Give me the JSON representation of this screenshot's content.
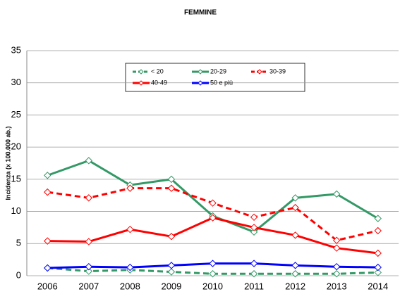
{
  "chart_data": {
    "type": "line",
    "title": "FEMMINE",
    "y_label": "Incidenza (x 100.000 ab.)",
    "categories": [
      "2006",
      "2007",
      "2008",
      "2009",
      "2010",
      "2011",
      "2012",
      "2013",
      "2014"
    ],
    "series": [
      {
        "name": "< 20",
        "color": "#339966",
        "dashed": true,
        "values": [
          1.2,
          0.7,
          0.9,
          0.6,
          0.3,
          0.3,
          0.3,
          0.3,
          0.5
        ]
      },
      {
        "name": "20-29",
        "color": "#339966",
        "dashed": false,
        "values": [
          15.6,
          17.9,
          14.1,
          15.0,
          9.3,
          6.8,
          12.1,
          12.7,
          8.9
        ]
      },
      {
        "name": "30-39",
        "color": "#ff0000",
        "dashed": true,
        "values": [
          13.0,
          12.1,
          13.6,
          13.6,
          11.3,
          9.1,
          10.6,
          5.5,
          7.0
        ]
      },
      {
        "name": "40-49",
        "color": "#ff0000",
        "dashed": false,
        "values": [
          5.4,
          5.3,
          7.2,
          6.1,
          9.0,
          7.5,
          6.3,
          4.3,
          3.5
        ]
      },
      {
        "name": "50 e più",
        "color": "#0000ff",
        "dashed": false,
        "values": [
          1.2,
          1.4,
          1.3,
          1.6,
          1.9,
          1.9,
          1.6,
          1.4,
          1.3
        ]
      }
    ],
    "ylim": [
      0,
      35
    ],
    "yticks": [
      0,
      5,
      10,
      15,
      20,
      25,
      30,
      35
    ],
    "grid": true
  }
}
